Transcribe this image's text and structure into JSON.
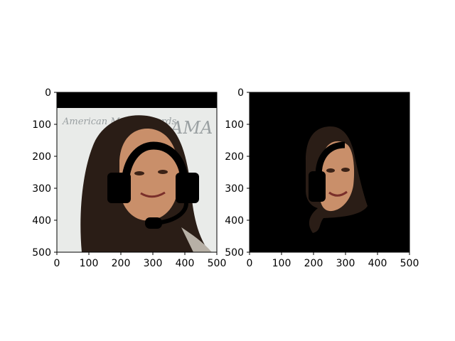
{
  "chart_data": [
    {
      "type": "image",
      "xlim": [
        0,
        500
      ],
      "ylim": [
        500,
        0
      ],
      "x_ticks": [
        0,
        100,
        200,
        300,
        400,
        500
      ],
      "y_ticks": [
        0,
        100,
        200,
        300,
        400,
        500
      ],
      "image_content": "portrait photo with black band at top, overlaid with black headset graphic",
      "overlay_text": "American Music Awards",
      "overlay_logo_text": "AMA"
    },
    {
      "type": "image",
      "xlim": [
        0,
        500
      ],
      "ylim": [
        500,
        0
      ],
      "x_ticks": [
        0,
        100,
        200,
        300,
        400,
        500
      ],
      "y_ticks": [
        0,
        100,
        200,
        300,
        400,
        500
      ],
      "image_content": "segmented face region on black background, overlaid with headset graphic"
    }
  ],
  "colors": {
    "background": "#ffffff",
    "image_background_light": "#e9ebe9",
    "mask_black": "#000000",
    "hair": "#2a1d16",
    "skin": "#c98f6a"
  }
}
